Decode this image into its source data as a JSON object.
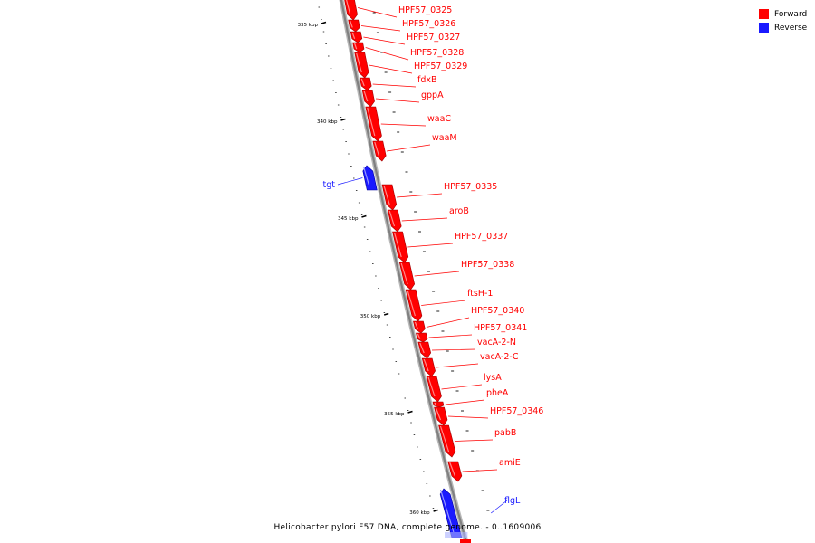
{
  "legend": [
    {
      "label": "Forward",
      "color": "#ff0000"
    },
    {
      "label": "Reverse",
      "color": "#1a1aff"
    }
  ],
  "caption": "Helicobacter pylori F57 DNA, complete genome. - 0..1609006",
  "colors": {
    "forward": "#ff0000",
    "reverse": "#1a1aff",
    "backbone": "#808080"
  },
  "ticks": [
    "335 kbp",
    "340 kbp",
    "345 kbp",
    "350 kbp",
    "355 kbp",
    "360 kbp"
  ],
  "genes": [
    {
      "name": "HPF57_0325",
      "strand": "forward"
    },
    {
      "name": "HPF57_0326",
      "strand": "forward"
    },
    {
      "name": "HPF57_0327",
      "strand": "forward"
    },
    {
      "name": "HPF57_0328",
      "strand": "forward"
    },
    {
      "name": "HPF57_0329",
      "strand": "forward"
    },
    {
      "name": "fdxB",
      "strand": "forward"
    },
    {
      "name": "gppA",
      "strand": "forward"
    },
    {
      "name": "waaC",
      "strand": "forward"
    },
    {
      "name": "waaM",
      "strand": "forward"
    },
    {
      "name": "tgt",
      "strand": "reverse"
    },
    {
      "name": "HPF57_0335",
      "strand": "forward"
    },
    {
      "name": "aroB",
      "strand": "forward"
    },
    {
      "name": "HPF57_0337",
      "strand": "forward"
    },
    {
      "name": "HPF57_0338",
      "strand": "forward"
    },
    {
      "name": "ftsH-1",
      "strand": "forward"
    },
    {
      "name": "HPF57_0340",
      "strand": "forward"
    },
    {
      "name": "HPF57_0341",
      "strand": "forward"
    },
    {
      "name": "vacA-2-N",
      "strand": "forward"
    },
    {
      "name": "vacA-2-C",
      "strand": "forward"
    },
    {
      "name": "lysA",
      "strand": "forward"
    },
    {
      "name": "pheA",
      "strand": "forward"
    },
    {
      "name": "HPF57_0346",
      "strand": "forward"
    },
    {
      "name": "pabB",
      "strand": "forward"
    },
    {
      "name": "amiE",
      "strand": "forward"
    },
    {
      "name": "flgL",
      "strand": "reverse"
    }
  ]
}
